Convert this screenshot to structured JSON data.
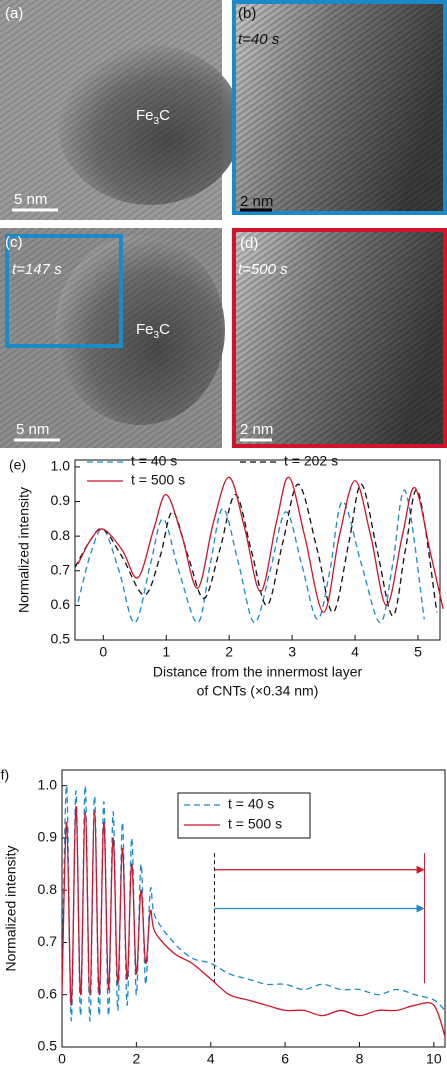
{
  "panels": [
    {
      "label": "(a)",
      "compound": [
        "Fe",
        "3",
        "C"
      ],
      "scale": "5 nm"
    },
    {
      "label": "(b)",
      "time": "t=40 s",
      "scale": "2 nm",
      "frame": "#1a8ac8"
    },
    {
      "label": "(c)",
      "time": "t=147 s",
      "compound": [
        "Fe",
        "3",
        "C"
      ],
      "scale": "5 nm"
    },
    {
      "label": "(d)",
      "time": "t=500 s",
      "scale": "2 nm",
      "frame": "#d0142c"
    }
  ],
  "chart_data": [
    {
      "type": "line",
      "panel": "(e)",
      "ylabel": "Normalized intensity",
      "xlabel": [
        "Distance from the innermost layer",
        "of CNTs (×0.34 nm)"
      ],
      "xlim": [
        -0.45,
        5.35
      ],
      "ylim": [
        0.5,
        1.02
      ],
      "xticks": [
        0,
        1,
        2,
        3,
        4,
        5
      ],
      "yticks": [
        0.5,
        0.6,
        0.7,
        0.8,
        0.9,
        {
          "value": 1,
          "label": "1.0"
        }
      ],
      "series": [
        {
          "name": "t = 40 s",
          "color": "#1a8ac8",
          "style": "dashed",
          "x": [
            -0.4,
            -0.2,
            0,
            0.25,
            0.5,
            0.75,
            0.95,
            1.2,
            1.5,
            1.7,
            1.9,
            2.15,
            2.4,
            2.65,
            2.9,
            3.15,
            3.4,
            3.6,
            3.8,
            4.1,
            4.4,
            4.6,
            4.8,
            5.1
          ],
          "values": [
            0.61,
            0.75,
            0.82,
            0.7,
            0.55,
            0.72,
            0.85,
            0.7,
            0.55,
            0.72,
            0.88,
            0.72,
            0.55,
            0.7,
            0.87,
            0.72,
            0.56,
            0.7,
            0.9,
            0.72,
            0.55,
            0.72,
            0.93,
            0.56
          ]
        },
        {
          "name": "t = 202 s",
          "color": "#111111",
          "style": "dashed",
          "x": [
            -0.45,
            -0.2,
            0,
            0.3,
            0.65,
            0.9,
            1.1,
            1.35,
            1.6,
            1.85,
            2.1,
            2.35,
            2.6,
            2.85,
            3.1,
            3.4,
            3.65,
            3.9,
            4.1,
            4.35,
            4.6,
            4.8,
            5.0,
            5.3
          ],
          "values": [
            0.71,
            0.79,
            0.82,
            0.74,
            0.63,
            0.74,
            0.87,
            0.74,
            0.62,
            0.76,
            0.92,
            0.76,
            0.6,
            0.78,
            0.95,
            0.76,
            0.58,
            0.78,
            0.95,
            0.76,
            0.57,
            0.76,
            0.93,
            0.58
          ]
        },
        {
          "name": "t = 500 s",
          "color": "#d0142c",
          "style": "solid",
          "x": [
            -0.4,
            -0.2,
            0,
            0.3,
            0.55,
            0.8,
            1.0,
            1.25,
            1.5,
            1.75,
            2.0,
            2.25,
            2.5,
            2.75,
            2.95,
            3.2,
            3.5,
            3.75,
            4.0,
            4.25,
            4.5,
            4.75,
            4.95,
            5.2,
            5.4
          ],
          "values": [
            0.72,
            0.79,
            0.82,
            0.76,
            0.68,
            0.82,
            0.92,
            0.8,
            0.65,
            0.84,
            0.97,
            0.82,
            0.64,
            0.84,
            0.97,
            0.8,
            0.58,
            0.8,
            0.96,
            0.8,
            0.6,
            0.8,
            0.94,
            0.75,
            0.59
          ]
        }
      ]
    },
    {
      "type": "line",
      "panel": "(f)",
      "ylabel": "Normalized intensity",
      "xlabel": [
        "Radial distance from the outer surface",
        "of the measured zone (nm)"
      ],
      "xlim": [
        0,
        10.3
      ],
      "ylim": [
        0.5,
        1.03
      ],
      "xticks": [
        0,
        2,
        4,
        6,
        8,
        10
      ],
      "yticks": [
        0.5,
        0.6,
        0.7,
        0.8,
        0.9,
        {
          "value": 1,
          "label": "1.0"
        }
      ],
      "vlines": [
        4.1,
        9.75
      ],
      "series": [
        {
          "name": "t = 40 s",
          "color": "#1a8ac8",
          "style": "dashed",
          "x": [
            0,
            0.125,
            0.25,
            0.375,
            0.5,
            0.625,
            0.75,
            0.875,
            1,
            1.125,
            1.25,
            1.375,
            1.5,
            1.625,
            1.75,
            1.875,
            2,
            2.125,
            2.25,
            2.375,
            2.5,
            3,
            3.5,
            4,
            4.5,
            5,
            5.5,
            6,
            6.5,
            7,
            7.5,
            8,
            8.5,
            9,
            9.5,
            10,
            10.3
          ],
          "values": [
            0.62,
            1.0,
            0.55,
            0.99,
            0.56,
            1.0,
            0.55,
            0.98,
            0.56,
            0.97,
            0.56,
            0.95,
            0.57,
            0.93,
            0.58,
            0.9,
            0.6,
            0.85,
            0.62,
            0.8,
            0.75,
            0.7,
            0.67,
            0.66,
            0.64,
            0.63,
            0.62,
            0.62,
            0.61,
            0.62,
            0.61,
            0.61,
            0.6,
            0.61,
            0.6,
            0.59,
            0.57
          ]
        },
        {
          "name": "t = 500 s",
          "color": "#d0142c",
          "style": "solid",
          "x": [
            0,
            0.125,
            0.25,
            0.375,
            0.5,
            0.625,
            0.75,
            0.875,
            1,
            1.125,
            1.25,
            1.375,
            1.5,
            1.625,
            1.75,
            1.875,
            2,
            2.125,
            2.25,
            2.375,
            2.5,
            3,
            3.5,
            4,
            4.5,
            5,
            5.5,
            6,
            6.5,
            7,
            7.5,
            8,
            8.5,
            9,
            9.5,
            10,
            10.3
          ],
          "values": [
            0.6,
            0.93,
            0.58,
            0.96,
            0.6,
            0.95,
            0.6,
            0.95,
            0.6,
            0.93,
            0.61,
            0.9,
            0.62,
            0.88,
            0.63,
            0.85,
            0.64,
            0.8,
            0.66,
            0.76,
            0.72,
            0.68,
            0.66,
            0.63,
            0.6,
            0.59,
            0.58,
            0.57,
            0.57,
            0.56,
            0.57,
            0.56,
            0.57,
            0.57,
            0.58,
            0.58,
            0.52
          ]
        }
      ]
    }
  ]
}
